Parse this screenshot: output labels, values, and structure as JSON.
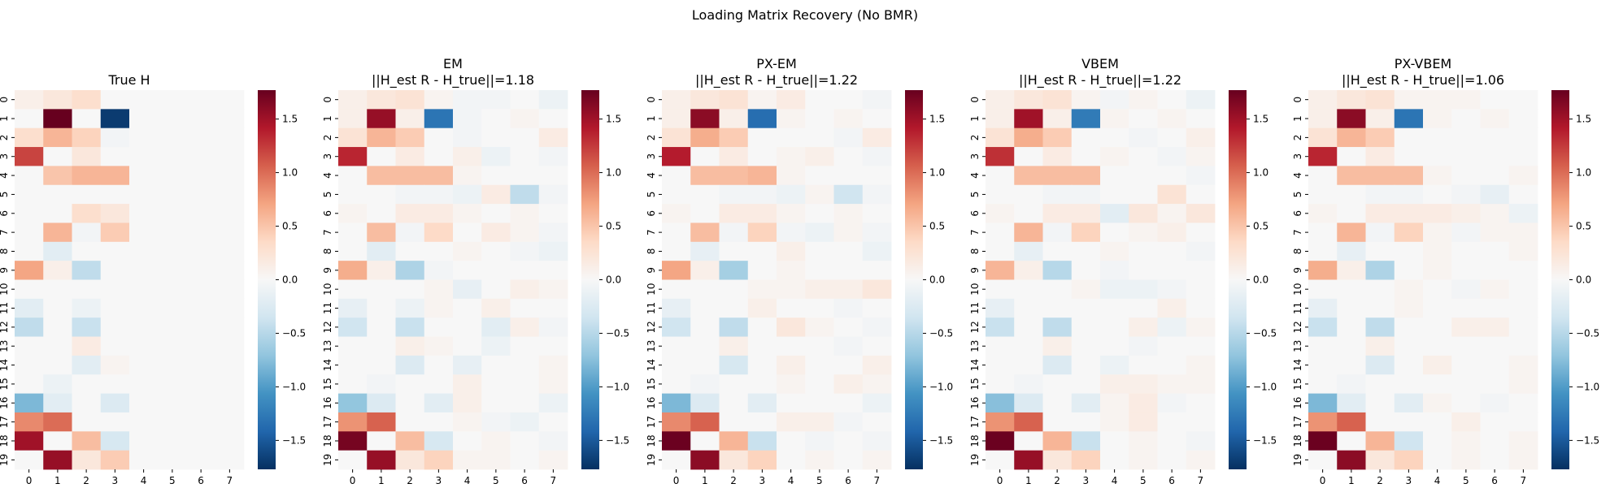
{
  "figure": {
    "suptitle": "Loading Matrix Recovery (No BMR)",
    "colorscale": {
      "vmin": -1.77,
      "vmax": 1.77,
      "ticks": [
        -1.5,
        -1.0,
        -0.5,
        0.0,
        0.5,
        1.0,
        1.5
      ],
      "tick_labels": [
        "−1.5",
        "−1.0",
        "−0.5",
        "0.0",
        "0.5",
        "1.0",
        "1.5"
      ],
      "colormap": "RdBu_r",
      "stops": [
        "#053061",
        "#2166ac",
        "#4393c3",
        "#92c5de",
        "#d1e5f0",
        "#f7f7f7",
        "#fddbc7",
        "#f4a582",
        "#d6604d",
        "#b2182b",
        "#67001f"
      ]
    }
  },
  "chart_data": [
    {
      "type": "heatmap",
      "title_line1": "True H",
      "title_line2": "",
      "x_ticks": [
        "0",
        "1",
        "2",
        "3",
        "4",
        "5",
        "6",
        "7"
      ],
      "y_ticks": [
        "0",
        "1",
        "2",
        "3",
        "4",
        "5",
        "6",
        "7",
        "8",
        "9",
        "10",
        "11",
        "12",
        "13",
        "14",
        "15",
        "16",
        "17",
        "18",
        "19"
      ],
      "values": [
        [
          0.1,
          0.2,
          0.3,
          0,
          0,
          0,
          0,
          0
        ],
        [
          0,
          1.8,
          0,
          -1.7,
          0,
          0,
          0,
          0
        ],
        [
          0.3,
          0.6,
          0.4,
          -0.05,
          0,
          0,
          0,
          0
        ],
        [
          1.2,
          0,
          0.2,
          0,
          0,
          0,
          0,
          0
        ],
        [
          0,
          0.5,
          0.6,
          0.6,
          0,
          0,
          0,
          0
        ],
        [
          0,
          0,
          0,
          0,
          0,
          0,
          0,
          0
        ],
        [
          0,
          0,
          0.3,
          0.2,
          0,
          0,
          0,
          0
        ],
        [
          0,
          0.6,
          -0.05,
          0.45,
          0,
          0,
          0,
          0
        ],
        [
          0,
          -0.2,
          0,
          0,
          0,
          0,
          0,
          0
        ],
        [
          0.7,
          0.1,
          -0.45,
          0,
          0,
          0,
          0,
          0
        ],
        [
          0,
          0,
          0,
          0,
          0,
          0,
          0,
          0
        ],
        [
          -0.2,
          0,
          -0.1,
          0,
          0,
          0,
          0,
          0
        ],
        [
          -0.45,
          0,
          -0.4,
          0,
          0,
          0,
          0,
          0
        ],
        [
          0,
          0,
          0.15,
          0,
          0,
          0,
          0,
          0
        ],
        [
          0,
          0,
          -0.2,
          0.05,
          0,
          0,
          0,
          0
        ],
        [
          0,
          -0.1,
          0,
          0,
          0,
          0,
          0,
          0
        ],
        [
          -0.8,
          -0.2,
          0,
          -0.25,
          0,
          0,
          0,
          0
        ],
        [
          0.85,
          1.0,
          0,
          0,
          0,
          0,
          0,
          0
        ],
        [
          1.5,
          0,
          0.55,
          -0.3,
          0,
          0,
          0,
          0
        ],
        [
          0,
          1.55,
          0.2,
          0.45,
          0,
          0,
          0,
          0
        ]
      ]
    },
    {
      "type": "heatmap",
      "title_line1": "EM",
      "title_line2": "||H_est R - H_true||=1.18",
      "x_ticks": [
        "0",
        "1",
        "2",
        "3",
        "4",
        "5",
        "6",
        "7"
      ],
      "y_ticks": [
        "0",
        "1",
        "2",
        "3",
        "4",
        "5",
        "6",
        "7",
        "8",
        "9",
        "10",
        "11",
        "12",
        "13",
        "14",
        "15",
        "16",
        "17",
        "18",
        "19"
      ],
      "values": [
        [
          0.1,
          0.2,
          0.25,
          0.05,
          -0.05,
          -0.05,
          0,
          -0.1
        ],
        [
          0.1,
          1.55,
          0.1,
          -1.3,
          -0.05,
          0,
          0.05,
          0
        ],
        [
          0.25,
          0.6,
          0.45,
          0,
          -0.05,
          0,
          0,
          0.15
        ],
        [
          1.35,
          0,
          0.15,
          0,
          0.1,
          -0.1,
          0,
          -0.05
        ],
        [
          0,
          0.55,
          0.55,
          0.55,
          0.05,
          0,
          0,
          0
        ],
        [
          0,
          0,
          -0.05,
          -0.05,
          -0.1,
          0.15,
          -0.45,
          -0.05
        ],
        [
          0.05,
          0,
          0.15,
          0.15,
          0.05,
          0,
          0.05,
          0
        ],
        [
          0,
          0.55,
          -0.05,
          0.35,
          0,
          0.15,
          0.05,
          -0.05
        ],
        [
          0,
          -0.2,
          0,
          0,
          0.05,
          0,
          -0.05,
          -0.1
        ],
        [
          0.65,
          0.1,
          -0.55,
          -0.05,
          0,
          0,
          0,
          0
        ],
        [
          0,
          0,
          0,
          0.05,
          -0.15,
          0,
          0.1,
          0.05
        ],
        [
          -0.15,
          0,
          -0.1,
          0.05,
          0,
          0.1,
          0,
          0
        ],
        [
          -0.35,
          0,
          -0.4,
          0,
          0,
          -0.2,
          0.1,
          -0.05
        ],
        [
          0,
          0,
          0.1,
          0.05,
          0,
          -0.1,
          0,
          0
        ],
        [
          0,
          0,
          -0.25,
          0,
          -0.15,
          0,
          0,
          0.05
        ],
        [
          0,
          -0.05,
          0,
          0,
          0.1,
          0,
          0,
          0.05
        ],
        [
          -0.7,
          -0.25,
          0,
          -0.2,
          0.1,
          0,
          0,
          -0.1
        ],
        [
          0.8,
          1.05,
          0,
          0,
          0.05,
          -0.05,
          -0.1,
          0
        ],
        [
          1.7,
          0,
          0.55,
          -0.3,
          0,
          0.05,
          0,
          -0.05
        ],
        [
          0,
          1.55,
          0.2,
          0.4,
          0.05,
          0.05,
          0,
          0.05
        ]
      ]
    },
    {
      "type": "heatmap",
      "title_line1": "PX-EM",
      "title_line2": "||H_est R - H_true||=1.22",
      "x_ticks": [
        "0",
        "1",
        "2",
        "3",
        "4",
        "5",
        "6",
        "7"
      ],
      "y_ticks": [
        "0",
        "1",
        "2",
        "3",
        "4",
        "5",
        "6",
        "7",
        "8",
        "9",
        "10",
        "11",
        "12",
        "13",
        "14",
        "15",
        "16",
        "17",
        "18",
        "19"
      ],
      "values": [
        [
          0.1,
          0.2,
          0.25,
          0.05,
          0.15,
          0,
          0,
          -0.05
        ],
        [
          0.1,
          1.6,
          0.1,
          -1.35,
          0.05,
          0,
          0.05,
          0
        ],
        [
          0.25,
          0.65,
          0.45,
          0,
          0,
          0,
          -0.05,
          0.15
        ],
        [
          1.4,
          0,
          0.15,
          0,
          0.05,
          0.1,
          0,
          -0.05
        ],
        [
          0,
          0.55,
          0.55,
          0.6,
          0.05,
          0,
          0,
          0
        ],
        [
          0,
          0,
          -0.05,
          -0.05,
          -0.1,
          0.05,
          -0.35,
          -0.05
        ],
        [
          0.05,
          0,
          0.15,
          0.15,
          0.05,
          0,
          0.05,
          0
        ],
        [
          0,
          0.55,
          -0.05,
          0.4,
          -0.05,
          -0.1,
          0.05,
          -0.05
        ],
        [
          0,
          -0.15,
          0,
          0,
          0.1,
          0,
          0,
          -0.1
        ],
        [
          0.7,
          0.1,
          -0.6,
          0,
          0.05,
          0,
          0,
          0
        ],
        [
          0,
          0,
          0,
          0.05,
          0.05,
          0.1,
          0.1,
          0.2
        ],
        [
          -0.15,
          0,
          0,
          0.1,
          0,
          0,
          -0.05,
          0
        ],
        [
          -0.35,
          0,
          -0.45,
          0,
          0.2,
          0.05,
          0,
          -0.05
        ],
        [
          0,
          0,
          0.1,
          0,
          0,
          0,
          -0.05,
          0
        ],
        [
          0,
          0,
          -0.3,
          0,
          0.1,
          0,
          0,
          0.1
        ],
        [
          0,
          -0.05,
          0,
          0,
          0.05,
          0,
          0.1,
          0.05
        ],
        [
          -0.8,
          -0.25,
          0,
          -0.2,
          0,
          0,
          0,
          -0.1
        ],
        [
          0.85,
          1.05,
          0,
          0,
          0.1,
          0.1,
          -0.05,
          0
        ],
        [
          1.75,
          0,
          0.6,
          -0.4,
          0,
          -0.05,
          0,
          -0.05
        ],
        [
          0,
          1.6,
          0.2,
          0.4,
          0,
          0.05,
          0,
          0.05
        ]
      ]
    },
    {
      "type": "heatmap",
      "title_line1": "VBEM",
      "title_line2": "||H_est R - H_true||=1.22",
      "x_ticks": [
        "0",
        "1",
        "2",
        "3",
        "4",
        "5",
        "6",
        "7"
      ],
      "y_ticks": [
        "0",
        "1",
        "2",
        "3",
        "4",
        "5",
        "6",
        "7",
        "8",
        "9",
        "10",
        "11",
        "12",
        "13",
        "14",
        "15",
        "16",
        "17",
        "18",
        "19"
      ],
      "values": [
        [
          0.1,
          0.2,
          0.25,
          0.05,
          -0.05,
          0.05,
          0,
          -0.1
        ],
        [
          0.1,
          1.5,
          0.1,
          -1.25,
          0.05,
          0,
          0.05,
          0
        ],
        [
          0.25,
          0.65,
          0.45,
          0,
          0,
          -0.05,
          0,
          0.1
        ],
        [
          1.3,
          0,
          0.15,
          0,
          0.05,
          0,
          -0.05,
          0.05
        ],
        [
          0,
          0.55,
          0.55,
          0.55,
          0,
          0,
          0,
          -0.05
        ],
        [
          0,
          0,
          -0.05,
          -0.05,
          0,
          0,
          0.25,
          0
        ],
        [
          0.05,
          0,
          0.15,
          0.15,
          -0.2,
          0.2,
          0.05,
          0.2
        ],
        [
          0,
          0.6,
          -0.05,
          0.4,
          0,
          0.05,
          0.1,
          0
        ],
        [
          0,
          -0.15,
          0,
          0,
          0.05,
          0,
          0,
          -0.05
        ],
        [
          0.6,
          0.1,
          -0.5,
          0,
          -0.05,
          0,
          0,
          0
        ],
        [
          0,
          0,
          0,
          0.05,
          -0.1,
          -0.1,
          -0.05,
          0
        ],
        [
          -0.15,
          0,
          0,
          0,
          0,
          0,
          0.1,
          0
        ],
        [
          -0.4,
          0,
          -0.45,
          0,
          0,
          0.1,
          -0.1,
          0.05
        ],
        [
          0,
          0,
          0.1,
          0,
          0,
          -0.05,
          0,
          0
        ],
        [
          0,
          0,
          -0.25,
          0,
          -0.1,
          0,
          0,
          0.05
        ],
        [
          0,
          -0.05,
          0,
          0,
          0.1,
          0.1,
          0.05,
          0.05
        ],
        [
          -0.75,
          -0.25,
          0,
          -0.2,
          0.05,
          0.15,
          -0.05,
          0
        ],
        [
          0.8,
          1.05,
          0,
          0,
          0.05,
          0.15,
          0,
          0
        ],
        [
          1.75,
          0,
          0.6,
          -0.4,
          0,
          0.05,
          0,
          -0.05
        ],
        [
          0,
          1.55,
          0.2,
          0.4,
          0,
          0.05,
          0,
          0.05
        ]
      ]
    },
    {
      "type": "heatmap",
      "title_line1": "PX-VBEM",
      "title_line2": "||H_est R - H_true||=1.06",
      "x_ticks": [
        "0",
        "1",
        "2",
        "3",
        "4",
        "5",
        "6",
        "7"
      ],
      "y_ticks": [
        "0",
        "1",
        "2",
        "3",
        "4",
        "5",
        "6",
        "7",
        "8",
        "9",
        "10",
        "11",
        "12",
        "13",
        "14",
        "15",
        "16",
        "17",
        "18",
        "19"
      ],
      "values": [
        [
          0.1,
          0.2,
          0.25,
          0.05,
          0.05,
          0.05,
          0,
          0
        ],
        [
          0.1,
          1.6,
          0.1,
          -1.3,
          0.05,
          0,
          0.05,
          0
        ],
        [
          0.25,
          0.6,
          0.45,
          0,
          0,
          0,
          0,
          0
        ],
        [
          1.35,
          0,
          0.15,
          0,
          0,
          0,
          0,
          0
        ],
        [
          0,
          0.55,
          0.55,
          0.55,
          0.05,
          0,
          0,
          0.05
        ],
        [
          0,
          0,
          -0.05,
          -0.05,
          0,
          -0.05,
          -0.15,
          0
        ],
        [
          0.05,
          0,
          0.15,
          0.15,
          0.15,
          0.1,
          0.05,
          -0.1
        ],
        [
          0,
          0.6,
          -0.05,
          0.4,
          0.05,
          -0.05,
          0.05,
          0.05
        ],
        [
          0,
          -0.15,
          0,
          0,
          0.05,
          0,
          0,
          0.05
        ],
        [
          0.65,
          0.1,
          -0.55,
          0,
          0.05,
          0,
          0,
          0
        ],
        [
          0,
          0,
          0,
          0.05,
          0,
          -0.05,
          0.05,
          0
        ],
        [
          -0.15,
          0,
          0,
          0.05,
          0,
          0,
          0,
          0
        ],
        [
          -0.4,
          0,
          -0.45,
          0,
          0,
          0.1,
          0.1,
          0
        ],
        [
          0,
          0,
          0.1,
          0,
          0,
          0,
          0,
          0
        ],
        [
          0,
          0,
          -0.25,
          0,
          0.1,
          0,
          0,
          0.05
        ],
        [
          0,
          -0.05,
          0,
          0,
          0,
          0,
          0,
          0.05
        ],
        [
          -0.8,
          -0.2,
          0,
          -0.2,
          0.05,
          0,
          -0.05,
          0
        ],
        [
          0.8,
          1.05,
          0,
          0,
          0,
          0.1,
          0,
          0
        ],
        [
          1.75,
          0,
          0.6,
          -0.35,
          0,
          0.05,
          0,
          0.05
        ],
        [
          0,
          1.6,
          0.2,
          0.4,
          0,
          0.05,
          0,
          0.05
        ]
      ]
    }
  ]
}
